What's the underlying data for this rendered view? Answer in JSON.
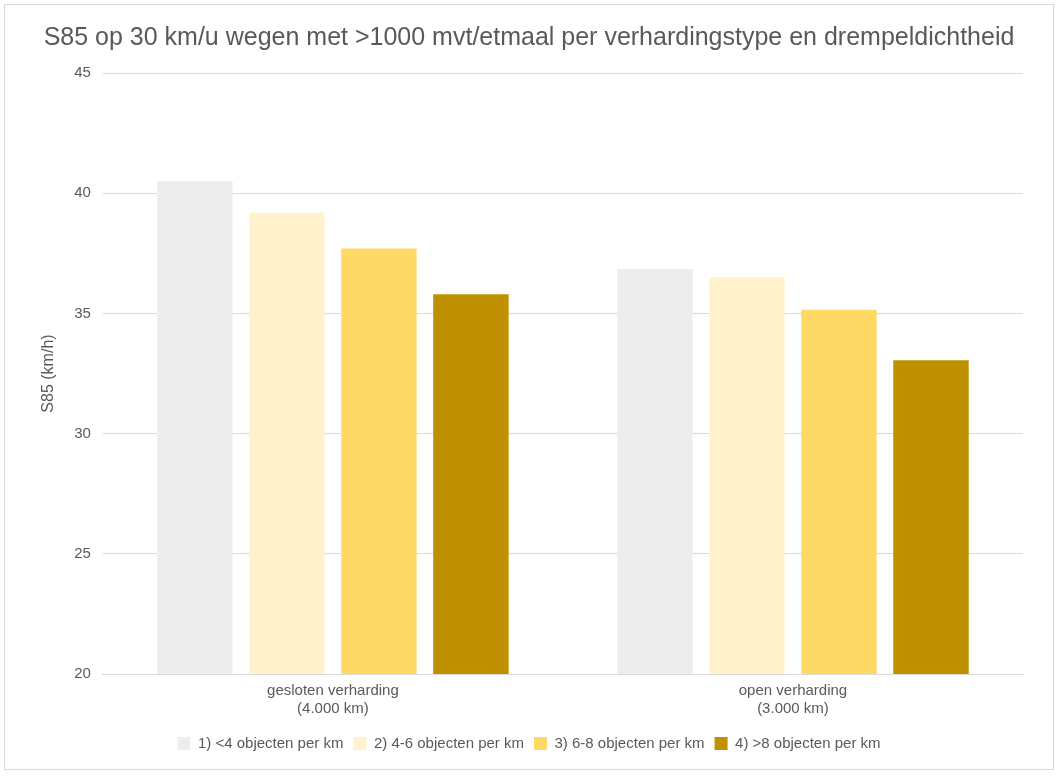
{
  "chart_data": {
    "type": "bar",
    "title": "S85 op 30 km/u wegen met >1000 mvt/etmaal per verhardingstype en drempeldichtheid",
    "ylabel": "S85 (km/h)",
    "categories": [
      "gesloten verharding\n(4.000 km)",
      "open verharding\n(3.000 km)"
    ],
    "series": [
      {
        "name": "1) <4 objecten per km",
        "color": "#ededed",
        "values": [
          40.5,
          36.85
        ]
      },
      {
        "name": "2) 4-6 objecten per km",
        "color": "#fff2cc",
        "values": [
          39.2,
          36.5
        ]
      },
      {
        "name": "3) 6-8 objecten per km",
        "color": "#ffd966",
        "values": [
          37.7,
          35.15
        ]
      },
      {
        "name": "4) >8 objecten per km",
        "color": "#bf9000",
        "values": [
          35.8,
          33.05
        ]
      }
    ],
    "ylim": [
      20,
      45
    ],
    "yticks": [
      20,
      25,
      30,
      35,
      40,
      45
    ],
    "grid": "y",
    "legend": "bottom"
  }
}
